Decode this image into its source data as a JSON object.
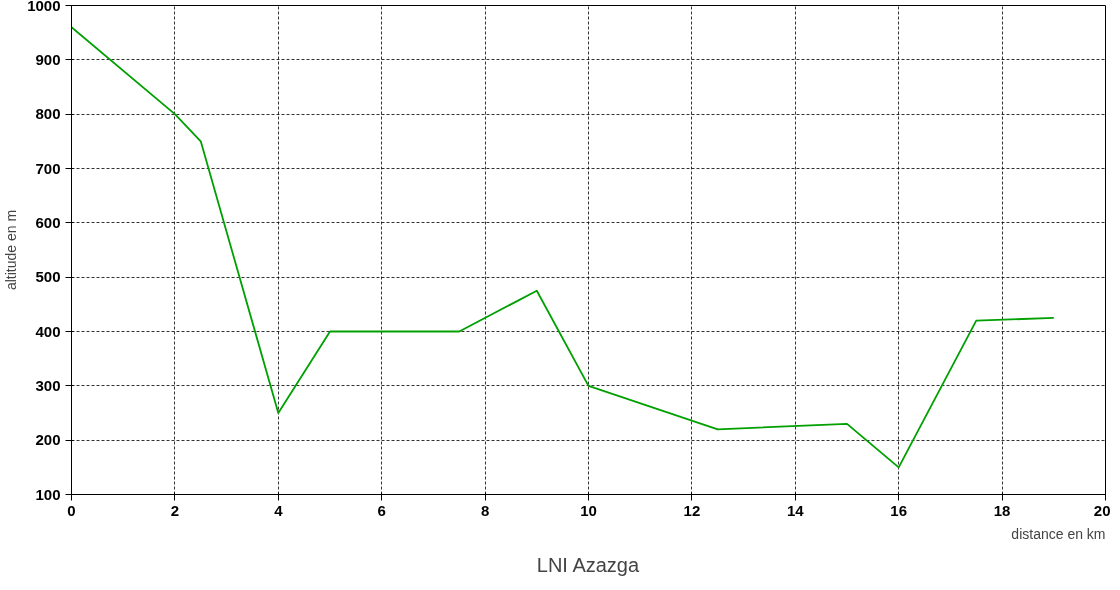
{
  "chart_data": {
    "type": "line",
    "title": "LNI Azazga",
    "xlabel": "distance en km",
    "ylabel": "altitude en m",
    "x": [
      0,
      2,
      2.5,
      4,
      5,
      7.5,
      9,
      10,
      12.5,
      15,
      16,
      17.5,
      19
    ],
    "series": [
      {
        "color": "#00a000",
        "values": [
          960,
          800,
          750,
          250,
          400,
          400,
          475,
          300,
          220,
          230,
          150,
          420,
          425
        ]
      }
    ],
    "xlim": [
      0,
      20
    ],
    "ylim": [
      100,
      1000
    ],
    "xticks": [
      0,
      2,
      4,
      6,
      8,
      10,
      12,
      14,
      16,
      18,
      20
    ],
    "yticks": [
      100,
      200,
      300,
      400,
      500,
      600,
      700,
      800,
      900,
      1000
    ],
    "grid": true,
    "line_style": "solid"
  }
}
